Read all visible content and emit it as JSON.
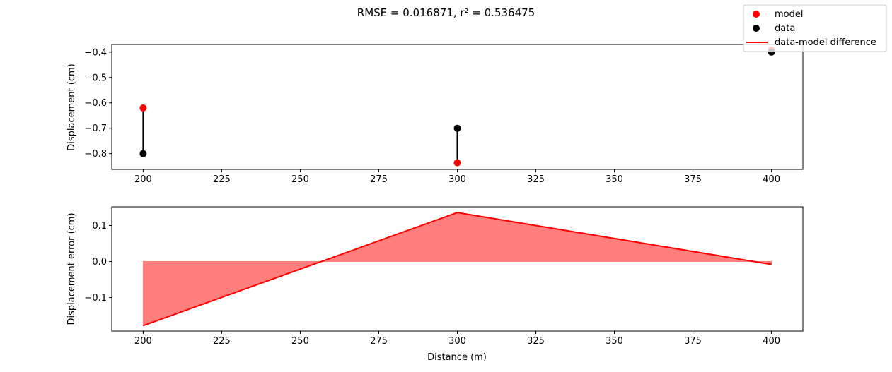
{
  "title": "RMSE = 0.016871, r² = 0.536475",
  "legend": {
    "placement": "top-right",
    "items": [
      {
        "label": "model",
        "marker": "dot",
        "color": "#ff0000"
      },
      {
        "label": "data",
        "marker": "dot",
        "color": "#000000"
      },
      {
        "label": "data-model difference",
        "marker": "line",
        "color": "#ff0000"
      }
    ]
  },
  "colors": {
    "model": "#ff0000",
    "data": "#000000",
    "error_line": "#ff0000",
    "error_fill": "#ff7f7f"
  },
  "chart_data": [
    {
      "type": "scatter",
      "xlabel": "",
      "ylabel": "Displacement (cm)",
      "xlim": [
        190,
        410
      ],
      "ylim": [
        -0.862,
        -0.37
      ],
      "xticks": [
        200,
        225,
        250,
        275,
        300,
        325,
        350,
        375,
        400
      ],
      "yticks": [
        -0.8,
        -0.7,
        -0.6,
        -0.5,
        -0.4
      ],
      "xtick_labels": [
        "200",
        "225",
        "250",
        "275",
        "300",
        "325",
        "350",
        "375",
        "400"
      ],
      "ytick_labels": [
        "−0.8",
        "−0.7",
        "−0.6",
        "−0.5",
        "−0.4"
      ],
      "grid": false,
      "x": [
        200,
        300,
        400
      ],
      "series": [
        {
          "name": "model",
          "values": [
            -0.62,
            -0.836,
            -0.392
          ]
        },
        {
          "name": "data",
          "values": [
            -0.8,
            -0.7,
            -0.4
          ]
        }
      ]
    },
    {
      "type": "area",
      "xlabel": "Distance (m)",
      "ylabel": "Displacement error (cm)",
      "xlim": [
        190,
        410
      ],
      "ylim": [
        -0.193,
        0.152
      ],
      "xticks": [
        200,
        225,
        250,
        275,
        300,
        325,
        350,
        375,
        400
      ],
      "yticks": [
        -0.1,
        0.0,
        0.1
      ],
      "xtick_labels": [
        "200",
        "225",
        "250",
        "275",
        "300",
        "325",
        "350",
        "375",
        "400"
      ],
      "ytick_labels": [
        "−0.1",
        "0.0",
        "0.1"
      ],
      "grid": false,
      "x": [
        200,
        300,
        400
      ],
      "series": [
        {
          "name": "data-model difference",
          "values": [
            -0.178,
            0.136,
            -0.008
          ]
        }
      ]
    }
  ]
}
